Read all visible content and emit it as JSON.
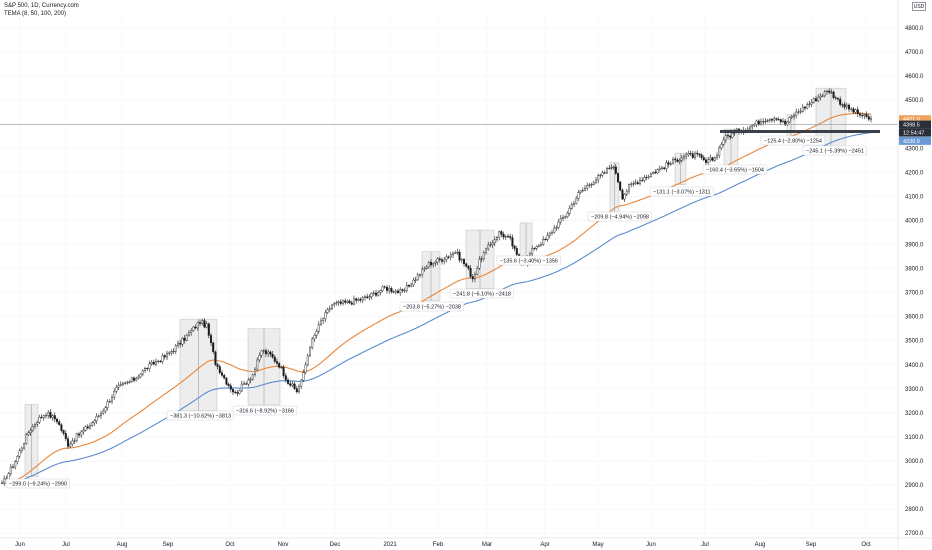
{
  "header": {
    "title": "S&P 500, 1D, Currency.com",
    "indicator": "TEMA (8, 50, 100, 200)",
    "currency": "USD"
  },
  "colors": {
    "candle": "#1a1a1a",
    "ema_fast": "#e8863a",
    "ema_slow": "#5b8bd0",
    "zone_fill": "#dedede",
    "zone_edge": "#bdbdbd",
    "resistance": "#3b3f46",
    "price_line": "#9598a1",
    "badge_price": "#2a2e39",
    "badge_orange": "#f0a35e",
    "badge_blue": "#6b9ad8"
  },
  "chart_data": {
    "type": "candlestick",
    "x_ticks": [
      "Jun",
      "Jul",
      "Aug",
      "Sep",
      "Oct",
      "Nov",
      "Dec",
      "2021",
      "Feb",
      "Mar",
      "Apr",
      "May",
      "Jun",
      "Jul",
      "Aug",
      "Sep",
      "Oct"
    ],
    "y_ticks": [
      2700,
      2800,
      2900,
      3000,
      3100,
      3200,
      3300,
      3400,
      3500,
      3600,
      3700,
      3800,
      3900,
      4000,
      4100,
      4200,
      4300,
      4400,
      4500,
      4600,
      4700,
      4800
    ],
    "ylim": [
      2680,
      4850
    ],
    "price_path": [
      [
        0,
        2900
      ],
      [
        6,
        3000
      ],
      [
        12,
        3120
      ],
      [
        16,
        3170
      ],
      [
        20,
        3200
      ],
      [
        25,
        3170
      ],
      [
        30,
        3070
      ],
      [
        35,
        3110
      ],
      [
        40,
        3150
      ],
      [
        45,
        3200
      ],
      [
        52,
        3300
      ],
      [
        60,
        3340
      ],
      [
        66,
        3390
      ],
      [
        75,
        3440
      ],
      [
        82,
        3500
      ],
      [
        90,
        3580
      ],
      [
        93,
        3560
      ],
      [
        97,
        3410
      ],
      [
        102,
        3330
      ],
      [
        106,
        3280
      ],
      [
        110,
        3320
      ],
      [
        114,
        3360
      ],
      [
        118,
        3460
      ],
      [
        122,
        3440
      ],
      [
        126,
        3400
      ],
      [
        130,
        3330
      ],
      [
        134,
        3290
      ],
      [
        137,
        3360
      ],
      [
        140,
        3480
      ],
      [
        145,
        3580
      ],
      [
        150,
        3650
      ],
      [
        158,
        3660
      ],
      [
        166,
        3680
      ],
      [
        174,
        3720
      ],
      [
        182,
        3700
      ],
      [
        188,
        3760
      ],
      [
        194,
        3820
      ],
      [
        200,
        3840
      ],
      [
        206,
        3870
      ],
      [
        211,
        3810
      ],
      [
        214,
        3760
      ],
      [
        218,
        3850
      ],
      [
        222,
        3900
      ],
      [
        226,
        3950
      ],
      [
        231,
        3920
      ],
      [
        235,
        3830
      ],
      [
        238,
        3830
      ],
      [
        242,
        3890
      ],
      [
        247,
        3920
      ],
      [
        252,
        3980
      ],
      [
        256,
        4020
      ],
      [
        262,
        4110
      ],
      [
        268,
        4160
      ],
      [
        273,
        4190
      ],
      [
        277,
        4230
      ],
      [
        279,
        4200
      ],
      [
        282,
        4100
      ],
      [
        285,
        4140
      ],
      [
        290,
        4170
      ],
      [
        296,
        4200
      ],
      [
        302,
        4230
      ],
      [
        310,
        4270
      ],
      [
        316,
        4270
      ],
      [
        320,
        4240
      ],
      [
        324,
        4260
      ],
      [
        328,
        4340
      ],
      [
        334,
        4370
      ],
      [
        340,
        4390
      ],
      [
        346,
        4420
      ],
      [
        352,
        4430
      ],
      [
        356,
        4400
      ],
      [
        360,
        4440
      ],
      [
        366,
        4480
      ],
      [
        372,
        4520
      ],
      [
        376,
        4540
      ],
      [
        380,
        4500
      ],
      [
        384,
        4470
      ],
      [
        388,
        4450
      ],
      [
        392,
        4430
      ],
      [
        395,
        4420
      ]
    ],
    "drawdowns": [
      {
        "label": "−299.0 (−9.24%) −2990",
        "from": 3235,
        "to": 2935
      },
      {
        "label": "−381.3 (−10.62%) −3813",
        "from": 3590,
        "to": 3209
      },
      {
        "label": "−316.6 (−8.92%) −3166",
        "from": 3550,
        "to": 3233
      },
      {
        "label": "−203.8 (−5.27%) −2038",
        "from": 3870,
        "to": 3666
      },
      {
        "label": "−241.8 (−6.10%) −2418",
        "from": 3960,
        "to": 3718
      },
      {
        "label": "−135.6 (−3.40%) −1356",
        "from": 3990,
        "to": 3854
      },
      {
        "label": "−209.8 (−4.94%) −2098",
        "from": 4240,
        "to": 4030
      },
      {
        "label": "−131.1 (−3.07%) −1311",
        "from": 4280,
        "to": 4149
      },
      {
        "label": "−160.4 (−3.65%) −1604",
        "from": 4380,
        "to": 4220
      },
      {
        "label": "−125.4 (−2.80%) −1254",
        "from": 4440,
        "to": 4315
      },
      {
        "label": "−245.1 (−5.39%) −2451",
        "from": 4550,
        "to": 4305
      }
    ],
    "resistance_level": 4370,
    "current_price": 4398.5,
    "countdown": "12:54:47",
    "ema_fast_last": 4421.0,
    "ema_slow_last": 4330.9
  }
}
